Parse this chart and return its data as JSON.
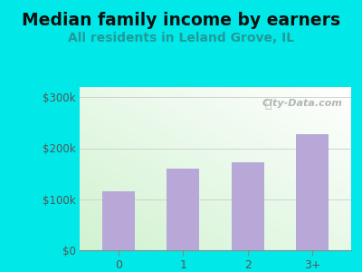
{
  "title": "Median family income by earners",
  "subtitle": "All residents in Leland Grove, IL",
  "categories": [
    "0",
    "1",
    "2",
    "3+"
  ],
  "values": [
    115000,
    160000,
    172000,
    228000
  ],
  "bar_color": "#b8a8d8",
  "title_fontsize": 13.5,
  "subtitle_fontsize": 10,
  "subtitle_color": "#229999",
  "title_color": "#111111",
  "yticks": [
    0,
    100000,
    200000,
    300000
  ],
  "ytick_labels": [
    "$0",
    "$100k",
    "$200k",
    "$300k"
  ],
  "ylim": [
    0,
    320000
  ],
  "outer_bg": "#00e8e8",
  "plot_bg_color1": "#ffffff",
  "plot_bg_color2": "#d0ecd0",
  "watermark": "City-Data.com",
  "watermark_color": "#aaaaaa",
  "tick_label_color": "#555555",
  "axis_color": "#888888",
  "grid_color": "#cccccc"
}
